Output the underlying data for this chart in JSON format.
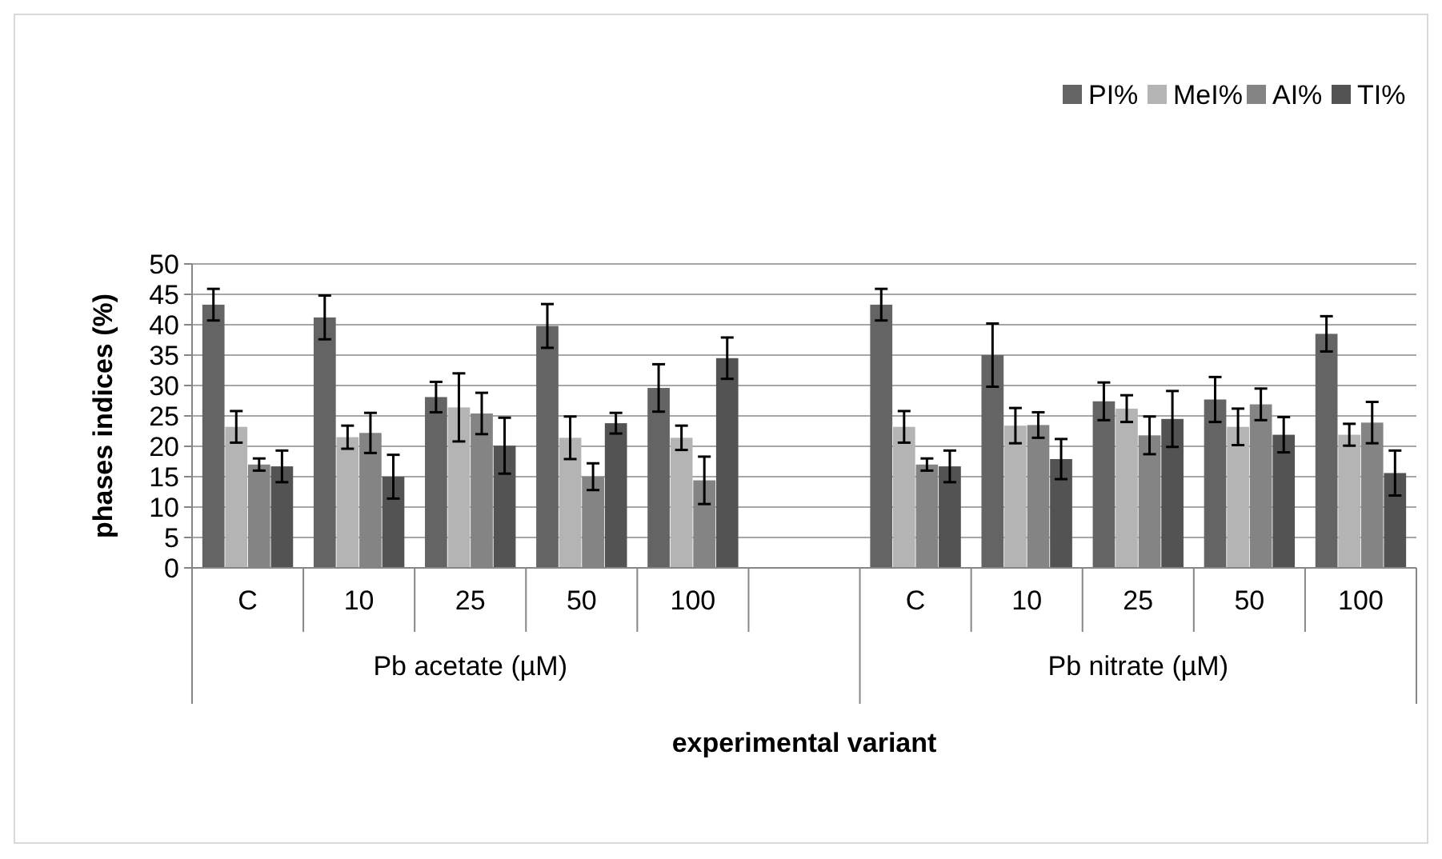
{
  "chart_data": {
    "type": "bar",
    "xlabel": "experimental variant",
    "ylabel": "phases indices (%)",
    "categories": [
      "C",
      "10",
      "25",
      "50",
      "100",
      null,
      "C",
      "10",
      "25",
      "50",
      "100"
    ],
    "series": [
      {
        "name": "PI%",
        "color": "#646464",
        "values": [
          43.3,
          41.2,
          28.1,
          39.8,
          29.6,
          null,
          43.3,
          35,
          27.4,
          27.7,
          38.5
        ],
        "errors": [
          2.6,
          3.6,
          2.5,
          3.6,
          3.9,
          null,
          2.6,
          5.2,
          3.1,
          3.7,
          2.9
        ]
      },
      {
        "name": "MeI%",
        "color": "#b4b4b4",
        "values": [
          23.2,
          21.5,
          26.4,
          21.4,
          21.4,
          null,
          23.2,
          23.4,
          26.2,
          23.2,
          21.9
        ],
        "errors": [
          2.6,
          1.9,
          5.6,
          3.5,
          2,
          null,
          2.6,
          2.9,
          2.2,
          3,
          1.8
        ]
      },
      {
        "name": "AI%",
        "color": "#848484",
        "values": [
          17,
          22.2,
          25.4,
          15,
          14.4,
          null,
          17,
          23.5,
          21.8,
          26.9,
          23.9
        ],
        "errors": [
          1,
          3.3,
          3.4,
          2.2,
          3.9,
          null,
          1,
          2.1,
          3.1,
          2.6,
          3.4
        ]
      },
      {
        "name": "TI%",
        "color": "#535353",
        "values": [
          16.7,
          15,
          20.1,
          23.8,
          34.5,
          null,
          16.7,
          17.9,
          24.5,
          21.9,
          15.6
        ],
        "errors": [
          2.6,
          3.6,
          4.6,
          1.7,
          3.4,
          null,
          2.6,
          3.3,
          4.6,
          2.9,
          3.7
        ]
      }
    ],
    "annotations": [
      "Pb acetate (µM)",
      "Pb nitrate (µM)"
    ],
    "ylim": [
      0,
      50
    ],
    "yticks": [
      0,
      5,
      10,
      15,
      20,
      25,
      30,
      35,
      40,
      45,
      50
    ],
    "grid": "y",
    "legend": "top right"
  }
}
